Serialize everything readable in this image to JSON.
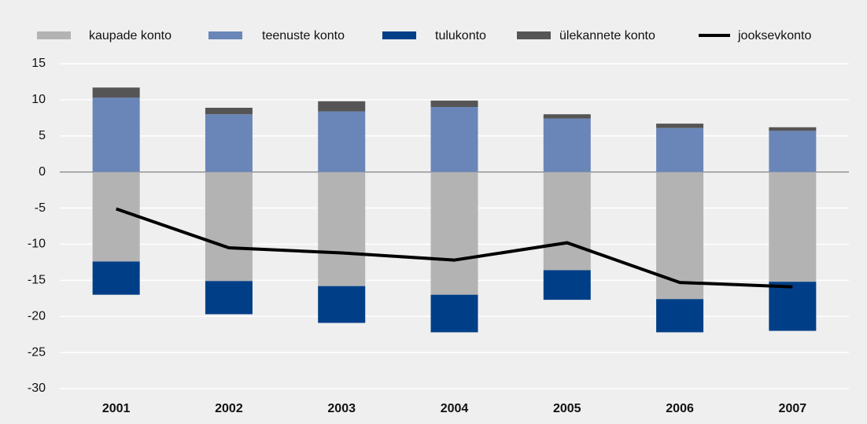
{
  "chart_data": {
    "type": "stacked_bar_line",
    "categories": [
      "2001",
      "2002",
      "2003",
      "2004",
      "2005",
      "2006",
      "2007"
    ],
    "series": [
      {
        "name": "kaupade konto",
        "color": "#b3b3b3",
        "kind": "bar",
        "values": [
          -12.4,
          -15.1,
          -15.8,
          -17.0,
          -13.6,
          -17.6,
          -15.2
        ]
      },
      {
        "name": "teenuste konto",
        "color": "#6a86b8",
        "kind": "bar",
        "values": [
          10.3,
          8.0,
          8.4,
          9.0,
          7.4,
          6.1,
          5.7
        ]
      },
      {
        "name": "tulukonto",
        "color": "#003f87",
        "kind": "bar",
        "values": [
          -4.6,
          -4.6,
          -5.1,
          -5.2,
          -4.1,
          -4.6,
          -6.8
        ]
      },
      {
        "name": "ülekannete konto",
        "color": "#555555",
        "kind": "bar",
        "values": [
          1.4,
          0.9,
          1.4,
          0.9,
          0.6,
          0.6,
          0.5
        ]
      },
      {
        "name": "jooksevkonto",
        "color": "#000000",
        "kind": "line",
        "values": [
          -5.1,
          -10.5,
          -11.2,
          -12.2,
          -9.8,
          -15.3,
          -15.9
        ]
      }
    ],
    "ylim": [
      -30,
      15
    ],
    "yticks": [
      -30,
      -25,
      -20,
      -15,
      -10,
      -5,
      0,
      5,
      10,
      15
    ],
    "grid": true
  }
}
